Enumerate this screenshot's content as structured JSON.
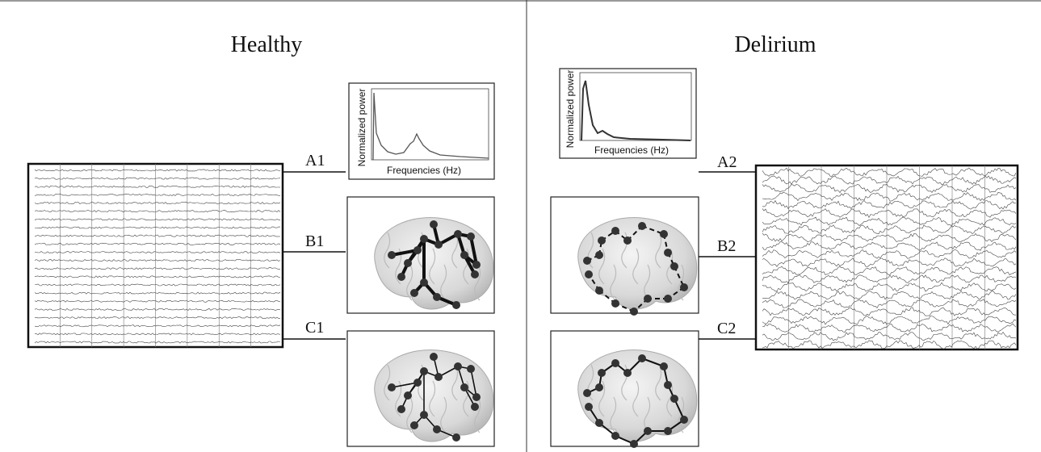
{
  "panels": [
    {
      "title": "Healthy",
      "labels": [
        "A1",
        "B1",
        "C1"
      ],
      "spectrum": {
        "ylabel": "Normalized power",
        "xlabel": "Frequencies (Hz)"
      }
    },
    {
      "title": "Delirium",
      "labels": [
        "A2",
        "B2",
        "C2"
      ],
      "spectrum": {
        "ylabel": "Normalized power",
        "xlabel": "Frequencies (Hz)"
      }
    }
  ]
}
